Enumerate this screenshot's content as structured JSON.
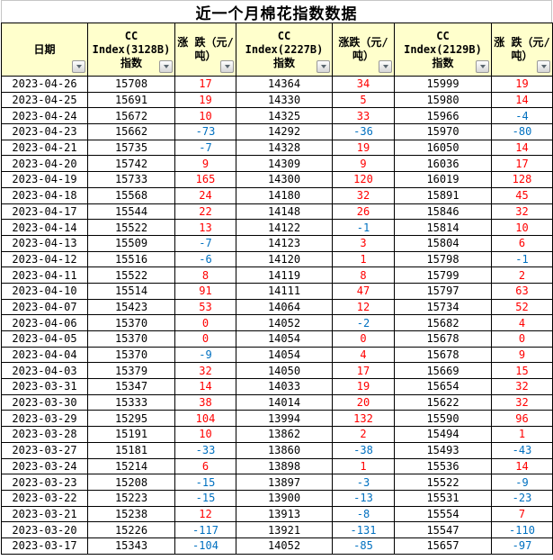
{
  "title": "近一个月棉花指数数据",
  "columns": [
    {
      "label": "日期"
    },
    {
      "label": "CC\nIndex(3128B)\n指数"
    },
    {
      "label": "涨 跌（元/\n吨）"
    },
    {
      "label": "CC\nIndex(2227B)\n指数"
    },
    {
      "label": "涨跌（元/\n吨）"
    },
    {
      "label": "CC\nIndex(2129B)\n指数"
    },
    {
      "label": "涨 跌（元/\n吨）"
    }
  ],
  "icons": {
    "filter_dropdown": "triangle-down"
  },
  "colors": {
    "header_bg": "#FFFFCC",
    "positive": "#FF0000",
    "negative": "#0070C0",
    "border": "#000000"
  },
  "rows": [
    [
      "2023-04-26",
      15708,
      17,
      14364,
      34,
      15999,
      19
    ],
    [
      "2023-04-25",
      15691,
      19,
      14330,
      5,
      15980,
      14
    ],
    [
      "2023-04-24",
      15672,
      10,
      14325,
      33,
      15966,
      -4
    ],
    [
      "2023-04-23",
      15662,
      -73,
      14292,
      -36,
      15970,
      -80
    ],
    [
      "2023-04-21",
      15735,
      -7,
      14328,
      19,
      16050,
      14
    ],
    [
      "2023-04-20",
      15742,
      9,
      14309,
      9,
      16036,
      17
    ],
    [
      "2023-04-19",
      15733,
      165,
      14300,
      120,
      16019,
      128
    ],
    [
      "2023-04-18",
      15568,
      24,
      14180,
      32,
      15891,
      45
    ],
    [
      "2023-04-17",
      15544,
      22,
      14148,
      26,
      15846,
      32
    ],
    [
      "2023-04-14",
      15522,
      13,
      14122,
      -1,
      15814,
      10
    ],
    [
      "2023-04-13",
      15509,
      -7,
      14123,
      3,
      15804,
      6
    ],
    [
      "2023-04-12",
      15516,
      -6,
      14120,
      1,
      15798,
      -1
    ],
    [
      "2023-04-11",
      15522,
      8,
      14119,
      8,
      15799,
      2
    ],
    [
      "2023-04-10",
      15514,
      91,
      14111,
      47,
      15797,
      63
    ],
    [
      "2023-04-07",
      15423,
      53,
      14064,
      12,
      15734,
      52
    ],
    [
      "2023-04-06",
      15370,
      0,
      14052,
      -2,
      15682,
      4
    ],
    [
      "2023-04-05",
      15370,
      0,
      14054,
      0,
      15678,
      0
    ],
    [
      "2023-04-04",
      15370,
      -9,
      14054,
      4,
      15678,
      9
    ],
    [
      "2023-04-03",
      15379,
      32,
      14050,
      17,
      15669,
      15
    ],
    [
      "2023-03-31",
      15347,
      14,
      14033,
      19,
      15654,
      32
    ],
    [
      "2023-03-30",
      15333,
      38,
      14014,
      20,
      15622,
      32
    ],
    [
      "2023-03-29",
      15295,
      104,
      13994,
      132,
      15590,
      96
    ],
    [
      "2023-03-28",
      15191,
      10,
      13862,
      2,
      15494,
      1
    ],
    [
      "2023-03-27",
      15181,
      -33,
      13860,
      -38,
      15493,
      -43
    ],
    [
      "2023-03-24",
      15214,
      6,
      13898,
      1,
      15536,
      14
    ],
    [
      "2023-03-23",
      15208,
      -15,
      13897,
      -3,
      15522,
      -9
    ],
    [
      "2023-03-22",
      15223,
      -15,
      13900,
      -13,
      15531,
      -23
    ],
    [
      "2023-03-21",
      15238,
      12,
      13913,
      -8,
      15554,
      7
    ],
    [
      "2023-03-20",
      15226,
      -117,
      13921,
      -131,
      15547,
      -110
    ],
    [
      "2023-03-17",
      15343,
      -104,
      14052,
      -85,
      15657,
      -97
    ]
  ]
}
